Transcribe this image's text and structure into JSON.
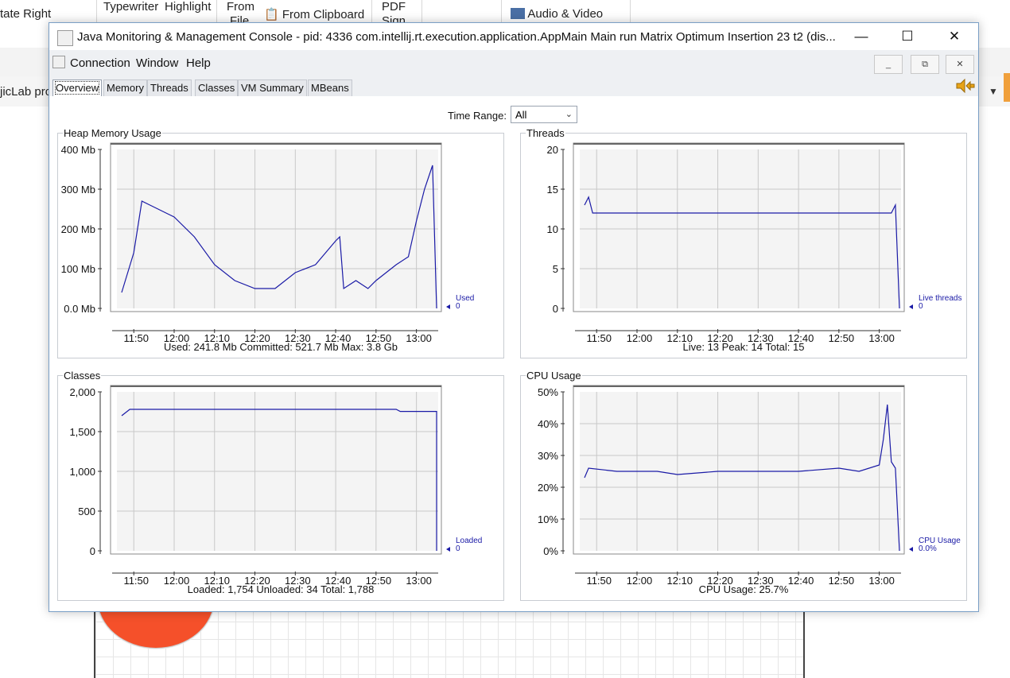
{
  "background": {
    "ribbon_items": [
      "tate Right",
      "Typewriter",
      "Highlight",
      "From",
      "File",
      "From Clipboard",
      "PDF",
      "Sign",
      "Audio & Video"
    ],
    "tab_text": "jicLab pro"
  },
  "window": {
    "title": "Java Monitoring & Management Console - pid: 4336 com.intellij.rt.execution.application.AppMain Main run Matrix Optimum Insertion 23 t2 (dis...",
    "controls": {
      "minimize": "—",
      "maximize": "☐",
      "close": "✕"
    },
    "menu": [
      "Connection",
      "Window",
      "Help"
    ],
    "mdi_controls": [
      "_",
      "⧉",
      "✕"
    ],
    "tabs": [
      "Overview",
      "Memory",
      "Threads",
      "Classes",
      "VM Summary",
      "MBeans"
    ],
    "active_tab": "Overview",
    "time_range": {
      "label": "Time Range:",
      "value": "All"
    }
  },
  "panels": {
    "heap": {
      "title": "Heap Memory Usage",
      "legend": "Used",
      "legend_value": "0",
      "summary": "Used: 241.8 Mb    Committed: 521.7 Mb    Max: 3.8 Gb"
    },
    "threads": {
      "title": "Threads",
      "legend": "Live threads",
      "legend_value": "0",
      "summary": "Live: 13    Peak: 14    Total: 15"
    },
    "classes": {
      "title": "Classes",
      "legend": "Loaded",
      "legend_value": "0",
      "summary": "Loaded: 1,754    Unloaded: 34    Total: 1,788"
    },
    "cpu": {
      "title": "CPU Usage",
      "legend": "CPU Usage",
      "legend_value": "0.0%",
      "summary": "CPU Usage: 25.7%"
    }
  },
  "chart_data": [
    {
      "type": "line",
      "title": "Heap Memory Usage",
      "x_ticks": [
        "11:50",
        "12:00",
        "12:10",
        "12:20",
        "12:30",
        "12:40",
        "12:50",
        "13:00"
      ],
      "y_ticks": [
        "0.0 Mb",
        "100 Mb",
        "200 Mb",
        "300 Mb",
        "400 Mb"
      ],
      "ylim": [
        0,
        400
      ],
      "series": [
        {
          "name": "Used",
          "x": [
            "11:47",
            "11:50",
            "11:52",
            "11:54",
            "11:56",
            "11:58",
            "12:00",
            "12:05",
            "12:10",
            "12:15",
            "12:20",
            "12:25",
            "12:30",
            "12:35",
            "12:40",
            "12:41",
            "12:42",
            "12:45",
            "12:48",
            "12:50",
            "12:55",
            "12:58",
            "13:00",
            "13:02",
            "13:04",
            "13:05"
          ],
          "values": [
            40,
            140,
            270,
            260,
            250,
            240,
            230,
            180,
            110,
            70,
            50,
            50,
            90,
            110,
            170,
            180,
            50,
            70,
            50,
            70,
            110,
            130,
            220,
            300,
            360,
            0
          ]
        }
      ]
    },
    {
      "type": "line",
      "title": "Threads",
      "x_ticks": [
        "11:50",
        "12:00",
        "12:10",
        "12:20",
        "12:30",
        "12:40",
        "12:50",
        "13:00"
      ],
      "y_ticks": [
        "0",
        "5",
        "10",
        "15",
        "20"
      ],
      "ylim": [
        0,
        20
      ],
      "series": [
        {
          "name": "Live threads",
          "x": [
            "11:47",
            "11:48",
            "11:49",
            "12:00",
            "12:30",
            "13:03",
            "13:04",
            "13:05"
          ],
          "values": [
            13,
            14,
            12,
            12,
            12,
            12,
            13,
            0
          ]
        }
      ]
    },
    {
      "type": "line",
      "title": "Classes",
      "x_ticks": [
        "11:50",
        "12:00",
        "12:10",
        "12:20",
        "12:30",
        "12:40",
        "12:50",
        "13:00"
      ],
      "y_ticks": [
        "0",
        "500",
        "1,000",
        "1,500",
        "2,000"
      ],
      "ylim": [
        0,
        2000
      ],
      "series": [
        {
          "name": "Loaded",
          "x": [
            "11:47",
            "11:48",
            "11:49",
            "12:20",
            "12:55",
            "12:56",
            "13:05",
            "13:05"
          ],
          "values": [
            1700,
            1740,
            1780,
            1780,
            1780,
            1754,
            1754,
            0
          ]
        }
      ]
    },
    {
      "type": "line",
      "title": "CPU Usage",
      "x_ticks": [
        "11:50",
        "12:00",
        "12:10",
        "12:20",
        "12:30",
        "12:40",
        "12:50",
        "13:00"
      ],
      "y_ticks": [
        "0%",
        "10%",
        "20%",
        "30%",
        "40%",
        "50%"
      ],
      "ylim": [
        0,
        50
      ],
      "series": [
        {
          "name": "CPU Usage",
          "x": [
            "11:47",
            "11:48",
            "11:55",
            "12:05",
            "12:10",
            "12:20",
            "12:30",
            "12:40",
            "12:50",
            "12:55",
            "13:00",
            "13:01",
            "13:02",
            "13:03",
            "13:04",
            "13:05"
          ],
          "values": [
            23,
            26,
            25,
            25,
            24,
            25,
            25,
            25,
            26,
            25,
            27,
            35,
            46,
            28,
            26,
            0
          ]
        }
      ]
    }
  ]
}
